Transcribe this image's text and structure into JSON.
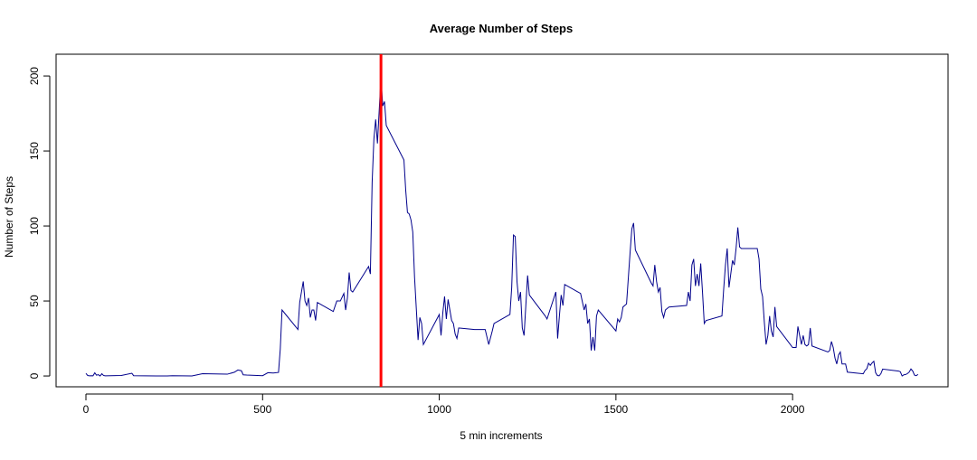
{
  "chart_data": {
    "type": "line",
    "title": "Average Number of Steps",
    "xlabel": "5 min increments",
    "ylabel": "Number of Steps",
    "color": "#00008b",
    "x": [
      0,
      5,
      10,
      15,
      20,
      25,
      30,
      35,
      40,
      45,
      50,
      55,
      100,
      130,
      135,
      200,
      230,
      245,
      300,
      330,
      400,
      420,
      430,
      440,
      445,
      455,
      500,
      515,
      530,
      545,
      550,
      555,
      600,
      605,
      615,
      620,
      625,
      630,
      635,
      640,
      645,
      650,
      655,
      700,
      710,
      720,
      730,
      735,
      740,
      745,
      750,
      755,
      800,
      805,
      810,
      815,
      820,
      825,
      830,
      835,
      840,
      845,
      850,
      900,
      905,
      910,
      915,
      920,
      925,
      930,
      935,
      940,
      945,
      950,
      955,
      1000,
      1005,
      1010,
      1015,
      1020,
      1025,
      1030,
      1035,
      1040,
      1045,
      1050,
      1055,
      1100,
      1130,
      1140,
      1150,
      1155,
      1200,
      1205,
      1210,
      1215,
      1220,
      1225,
      1230,
      1235,
      1240,
      1245,
      1250,
      1255,
      1300,
      1305,
      1330,
      1335,
      1340,
      1345,
      1350,
      1355,
      1400,
      1410,
      1415,
      1420,
      1425,
      1430,
      1435,
      1440,
      1445,
      1450,
      1500,
      1505,
      1510,
      1515,
      1520,
      1525,
      1530,
      1535,
      1540,
      1545,
      1550,
      1555,
      1600,
      1605,
      1610,
      1615,
      1620,
      1625,
      1630,
      1635,
      1640,
      1645,
      1650,
      1700,
      1705,
      1710,
      1715,
      1720,
      1725,
      1730,
      1735,
      1740,
      1745,
      1750,
      1755,
      1800,
      1805,
      1810,
      1815,
      1820,
      1825,
      1830,
      1835,
      1840,
      1845,
      1850,
      1855,
      1900,
      1905,
      1910,
      1915,
      1920,
      1925,
      1930,
      1935,
      1940,
      1945,
      1950,
      1955,
      2000,
      2005,
      2010,
      2015,
      2020,
      2025,
      2030,
      2035,
      2040,
      2045,
      2050,
      2055,
      2100,
      2105,
      2110,
      2115,
      2120,
      2125,
      2130,
      2135,
      2140,
      2145,
      2150,
      2155,
      2200,
      2205,
      2210,
      2215,
      2220,
      2225,
      2230,
      2235,
      2240,
      2245,
      2250,
      2255,
      2300,
      2305,
      2310,
      2315,
      2320,
      2325,
      2330,
      2335,
      2340,
      2345,
      2350,
      2355
    ],
    "values": [
      1.7,
      0.3,
      0.1,
      0.2,
      0.1,
      2.1,
      0.5,
      0.9,
      0,
      1.5,
      0.3,
      0.1,
      0.3,
      1.8,
      0.2,
      0,
      0,
      0.2,
      0,
      1.5,
      1.2,
      2.5,
      4,
      3.5,
      0.8,
      0.6,
      0.2,
      2.2,
      2,
      2.4,
      18,
      44,
      31,
      49,
      63,
      50,
      47,
      52,
      39,
      44,
      44,
      37,
      49,
      43,
      50,
      50,
      55,
      44,
      52,
      69,
      57,
      56,
      73,
      68,
      129,
      158,
      171,
      155,
      177,
      199,
      180,
      183,
      167,
      144,
      124,
      109,
      108,
      104,
      96,
      66,
      45,
      24,
      39,
      35,
      21,
      41,
      27,
      42,
      53,
      38,
      51,
      44,
      37,
      35,
      28,
      25,
      32,
      31,
      31,
      21,
      30,
      35,
      41,
      59,
      94,
      93,
      63,
      50,
      56,
      32,
      27,
      47,
      67,
      54,
      40,
      38,
      56,
      25,
      40,
      54,
      47,
      61,
      55,
      44,
      48,
      35,
      38,
      17,
      26,
      17,
      40,
      44,
      30,
      38,
      36,
      39,
      46,
      47,
      48,
      65,
      82,
      98,
      102,
      84,
      62,
      60,
      74,
      63,
      56,
      59,
      43,
      39,
      44,
      45,
      46,
      47,
      56,
      50,
      74,
      78,
      60,
      68,
      60,
      75,
      56,
      35,
      37,
      40,
      58,
      74,
      85,
      59,
      68,
      77,
      74,
      85,
      99,
      86,
      85,
      85,
      78,
      58,
      53,
      36,
      21,
      27,
      40,
      30,
      26,
      46,
      33,
      19,
      19,
      19,
      33,
      27,
      21,
      27,
      21,
      20,
      21,
      32,
      20,
      16,
      17,
      23,
      19,
      12,
      8,
      14,
      16,
      8,
      8,
      8,
      2.6,
      1.5,
      3.7,
      4.8,
      8.5,
      7.1,
      8.7,
      9.8,
      2.2,
      0.3,
      0.1,
      1.6,
      4.6,
      3.3,
      2.8,
      0,
      0.8,
      1,
      1.6,
      2.6,
      4.7,
      3.3,
      0.6,
      0.2,
      1.1
    ],
    "vline": {
      "x": 835,
      "color": "#ff0000"
    },
    "xlim": [
      -84.5,
      2440
    ],
    "ylim": [
      -7.2,
      214.5
    ],
    "xticks": [
      0,
      500,
      1000,
      1500,
      2000
    ],
    "yticks": [
      0,
      50,
      100,
      150,
      200
    ]
  }
}
